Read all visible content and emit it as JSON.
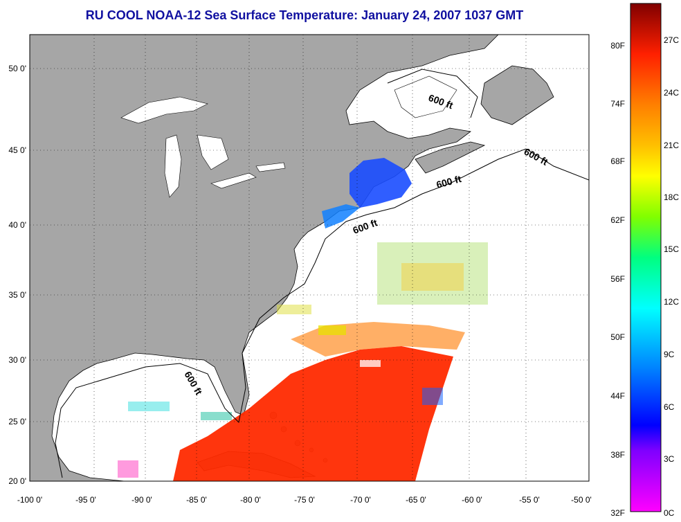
{
  "title": "RU COOL  NOAA-12  Sea Surface Temperature:  January 24, 2007 1037 GMT",
  "lon_ticks": [
    "-100 0'",
    "-95 0'",
    "-90 0'",
    "-85 0'",
    "-80 0'",
    "-75 0'",
    "-70 0'",
    "-65 0'",
    "-60 0'",
    "-55 0'",
    "-50 0'"
  ],
  "lat_ticks": [
    "50 0'",
    "45 0'",
    "40 0'",
    "35 0'",
    "30 0'",
    "25 0'",
    "20 0'"
  ],
  "contour_label": "600 ft",
  "colorbar": {
    "fahrenheit": [
      "80F",
      "74F",
      "68F",
      "62F",
      "56F",
      "50F",
      "44F",
      "38F",
      "32F"
    ],
    "celsius": [
      "27C",
      "24C",
      "21C",
      "18C",
      "15C",
      "12C",
      "9C",
      "6C",
      "3C",
      "0C"
    ],
    "colors": [
      "#ff00ff",
      "#7f00ff",
      "#0000ff",
      "#0080ff",
      "#00ffff",
      "#00ff80",
      "#80ff00",
      "#ffff00",
      "#ffc000",
      "#ff8000",
      "#ff2000",
      "#800000"
    ]
  },
  "colors": {
    "land": "#a6a6a6",
    "ocean": "#ffffff",
    "title": "#1010a0"
  }
}
